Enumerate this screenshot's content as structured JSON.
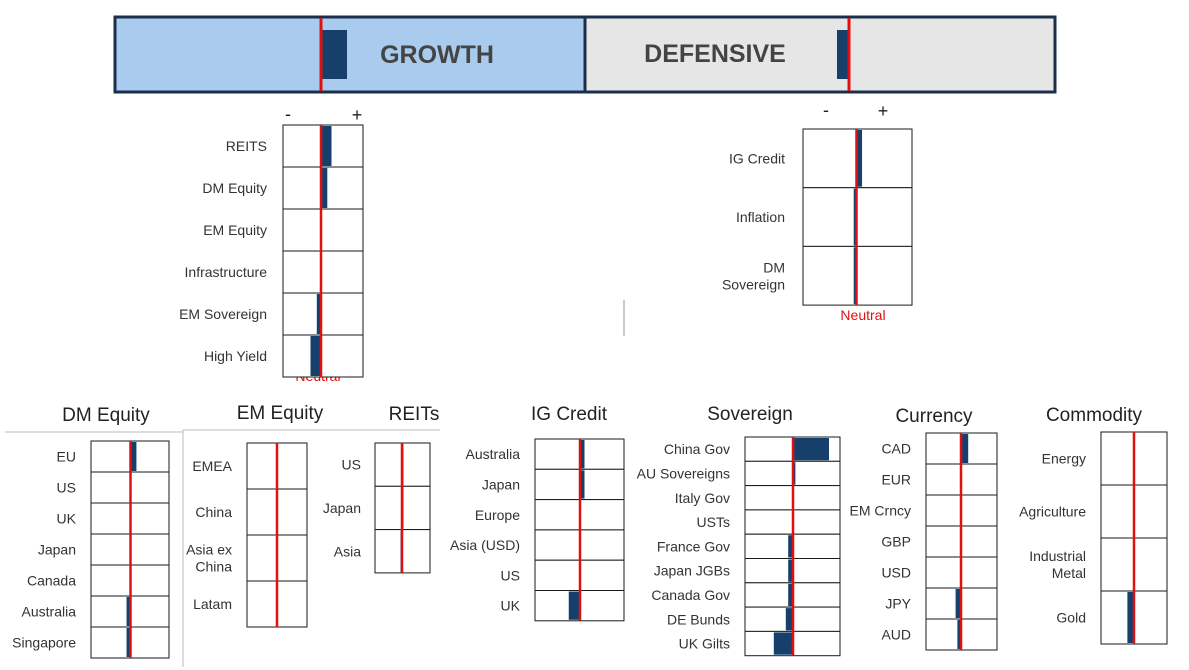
{
  "colors": {
    "growth_fill": "#a9cbee",
    "defensive_fill": "#e6e6e6",
    "border": "#1b2f4a",
    "bar": "#16406b",
    "neutral_line": "#e01010",
    "cell_border": "#1a1a1a"
  },
  "scale_labels": {
    "minus": "-",
    "plus": "+",
    "neutral": "Neutral"
  },
  "chart_data": {
    "type": "bar",
    "banner": {
      "growth": {
        "label": "GROWTH",
        "value": 0.65
      },
      "defensive": {
        "label": "DEFENSIVE",
        "value": -0.3
      }
    },
    "panels": [
      {
        "id": "growth",
        "title": "",
        "categories": [
          "REITS",
          "DM Equity",
          "EM Equity",
          "Infrastructure",
          "EM Sovereign",
          "High Yield"
        ],
        "values": [
          0.25,
          0.15,
          0,
          0,
          -0.1,
          -0.25
        ]
      },
      {
        "id": "defensive",
        "title": "",
        "categories": [
          "IG Credit",
          "Inflation",
          "DM|Sovereign"
        ],
        "values": [
          0.1,
          -0.05,
          -0.05
        ]
      },
      {
        "id": "dm-equity",
        "title": "DM Equity",
        "categories": [
          "EU",
          "US",
          "UK",
          "Japan",
          "Canada",
          "Australia",
          "Singapore"
        ],
        "values": [
          0.15,
          0,
          0,
          0,
          0,
          -0.1,
          -0.1
        ]
      },
      {
        "id": "em-equity",
        "title": "EM Equity",
        "categories": [
          "EMEA",
          "China",
          "Asia ex|China",
          "Latam"
        ],
        "values": [
          0,
          0,
          0,
          0
        ]
      },
      {
        "id": "reits",
        "title": "REITs",
        "categories": [
          "US",
          "Japan",
          "Asia"
        ],
        "values": [
          0.05,
          0.05,
          -0.05
        ]
      },
      {
        "id": "ig-credit",
        "title": "IG Credit",
        "categories": [
          "Australia",
          "Japan",
          "Europe",
          "Asia (USD)",
          "US",
          "UK"
        ],
        "values": [
          0.1,
          0.1,
          0,
          0,
          0,
          -0.25
        ]
      },
      {
        "id": "sovereign",
        "title": "Sovereign",
        "categories": [
          "China Gov",
          "AU Sovereigns",
          "Italy Gov",
          "USTs",
          "France Gov",
          "Japan JGBs",
          "Canada Gov",
          "DE Bunds",
          "UK Gilts"
        ],
        "values": [
          0.75,
          0.05,
          0,
          0,
          -0.1,
          -0.1,
          -0.1,
          -0.15,
          -0.4
        ]
      },
      {
        "id": "currency",
        "title": "Currency",
        "categories": [
          "CAD",
          "EUR",
          "EM Crncy",
          "GBP",
          "USD",
          "JPY",
          "AUD"
        ],
        "values": [
          0.2,
          0,
          0,
          0,
          0,
          -0.15,
          -0.1
        ]
      },
      {
        "id": "commodity",
        "title": "Commodity",
        "categories": [
          "Energy",
          "Agriculture",
          "Industrial|Metal",
          "Gold"
        ],
        "values": [
          0,
          0,
          0,
          -0.2
        ]
      }
    ]
  }
}
